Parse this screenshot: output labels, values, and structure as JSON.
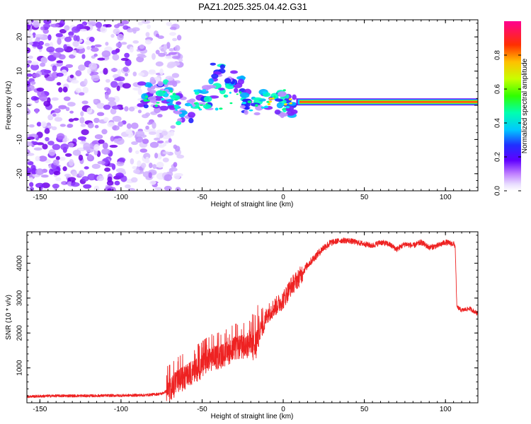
{
  "title": "PAZ1.2025.325.04.42.G31",
  "colors": {
    "snr_line": "#ee2222",
    "frame": "#000000",
    "colormap": [
      "#ffffff",
      "#e6d6ff",
      "#b07cff",
      "#8000ff",
      "#2020ff",
      "#00c8ff",
      "#00ff80",
      "#80ff00",
      "#ffff00",
      "#ff8000",
      "#ff0000",
      "#ff00a0"
    ]
  },
  "chart_data": [
    {
      "type": "heatmap",
      "name": "spectrogram",
      "xlabel": "Height of straight line (km)",
      "ylabel": "Frequency (Hz)",
      "xlim": [
        -158,
        120
      ],
      "ylim": [
        -25,
        25
      ],
      "xticks": [
        -150,
        -100,
        -50,
        0,
        50,
        100
      ],
      "yticks": [
        -20,
        -10,
        0,
        10,
        20
      ],
      "colorbar": {
        "label": "Normalized spectral amplitude",
        "range": [
          0,
          1
        ],
        "ticks": [
          "0.0",
          "0.2",
          "0.4",
          "0.6",
          "0.8"
        ]
      },
      "description_points": {
        "noise_region_km": [
          -158,
          -85
        ],
        "strong_tone_start_km": 10,
        "strong_tone_freq_hz": 1
      }
    },
    {
      "type": "line",
      "name": "snr",
      "xlabel": "Height of straight line (km)",
      "ylabel": "SNR (10 * v/v)",
      "xlim": [
        -158,
        120
      ],
      "ylim": [
        0,
        4900
      ],
      "xticks": [
        -150,
        -100,
        -50,
        0,
        50,
        100
      ],
      "yticks": [
        1000,
        2000,
        3000,
        4000
      ],
      "series": [
        {
          "name": "SNR",
          "x": [
            -158,
            -140,
            -120,
            -100,
            -85,
            -75,
            -70,
            -65,
            -60,
            -55,
            -50,
            -45,
            -40,
            -35,
            -30,
            -25,
            -20,
            -17,
            -15,
            -12,
            -10,
            -5,
            0,
            5,
            10,
            15,
            20,
            25,
            30,
            35,
            40,
            45,
            50,
            55,
            60,
            65,
            70,
            75,
            80,
            85,
            90,
            95,
            100,
            105,
            106,
            107,
            110,
            115,
            120
          ],
          "values": [
            180,
            200,
            200,
            210,
            220,
            260,
            380,
            600,
            750,
            900,
            1050,
            1250,
            1300,
            1400,
            1550,
            1600,
            1650,
            1600,
            2050,
            2200,
            2550,
            2750,
            2950,
            3350,
            3600,
            3950,
            4200,
            4450,
            4600,
            4650,
            4650,
            4600,
            4550,
            4500,
            4600,
            4550,
            4400,
            4550,
            4500,
            4600,
            4450,
            4500,
            4600,
            4550,
            4500,
            2750,
            2650,
            2700,
            2550
          ]
        }
      ]
    }
  ]
}
